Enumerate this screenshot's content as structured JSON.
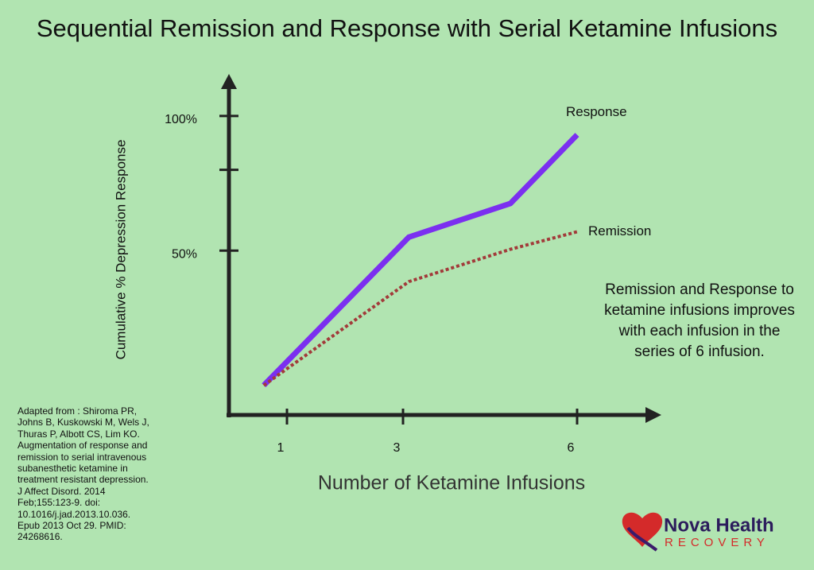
{
  "chart_data": {
    "type": "line",
    "title": "Sequential Remission and Response with Serial Ketamine Infusions",
    "x_label": "Number of Ketamine Infusions",
    "y_label": "Cumulative % Depression Response",
    "x": [
      0.6,
      3.1,
      4.85,
      6
    ],
    "series": [
      {
        "name": "Response",
        "color": "#7b2ff0",
        "style": "solid",
        "values": [
          0,
          55,
          67.5,
          93
        ]
      },
      {
        "name": "Remission",
        "color": "#a23a3a",
        "style": "dotted",
        "values": [
          0,
          38.5,
          50.5,
          57
        ]
      }
    ],
    "xlim": [
      0,
      7.5
    ],
    "xticks": [
      1,
      3,
      6
    ],
    "ylim": [
      -11,
      115
    ],
    "yticks": [
      {
        "value": 50,
        "label": "50%"
      },
      {
        "value": 80,
        "label": null
      },
      {
        "value": 100,
        "label": "100%"
      }
    ],
    "annotation": "Remission and Response to ketamine infusions improves with each infusion in the series of 6 infusion.",
    "citation": "Adapted from : Shiroma PR, Johns B, Kuskowski M, Wels J, Thuras P, Albott CS, Lim KO. Augmentation of response and remission to serial intravenous subanesthetic ketamine in treatment resistant depression. J Affect Disord. 2014 Feb;155:123-9. doi: 10.1016/j.jad.2013.10.036. Epub 2013 Oct 29. PMID: 24268616."
  },
  "logo": {
    "name": "Nova Health",
    "tagline": "RECOVERY"
  }
}
